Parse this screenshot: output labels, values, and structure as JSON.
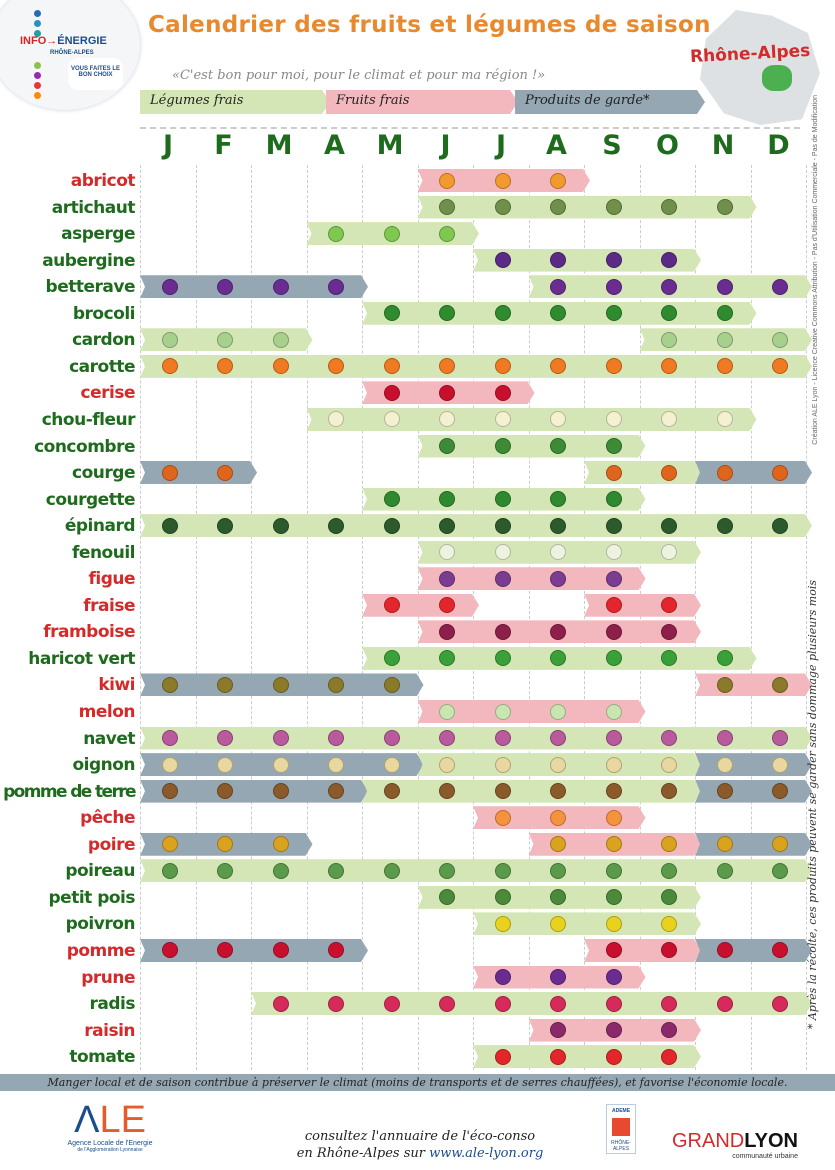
{
  "header": {
    "logo": {
      "line1a": "INFO→",
      "line1b": "ÉNERGIE",
      "line2": "RHÔNE-ALPES",
      "badge": "VOUS FAITES LE BON CHOIX"
    },
    "title": "Calendrier des fruits et légumes de saison",
    "subtitle": "«C'est bon pour moi, pour le climat et pour ma région !»",
    "region": "Rhône-Alpes"
  },
  "legend": [
    {
      "key": "fresh_veg",
      "label": "Légumes frais",
      "color": "#d4e6b5"
    },
    {
      "key": "fresh_fruit",
      "label": "Fruits frais",
      "color": "#f2b8bd"
    },
    {
      "key": "storage",
      "label": "Produits de garde*",
      "color": "#94a7b3"
    }
  ],
  "colors": {
    "veg_label": "#1e6b1e",
    "fruit_label": "#d42a2a",
    "title": "#e8892e"
  },
  "months": [
    "J",
    "F",
    "M",
    "A",
    "M",
    "J",
    "J",
    "A",
    "S",
    "O",
    "N",
    "D"
  ],
  "items": [
    {
      "name": "abricot",
      "kind": "fruit",
      "icon": "apricot-icon",
      "icon_color": "#f29a2e",
      "segments": [
        [
          5,
          7,
          "fresh_fruit"
        ]
      ]
    },
    {
      "name": "artichaut",
      "kind": "veg",
      "icon": "artichoke-icon",
      "icon_color": "#6f8f4a",
      "segments": [
        [
          5,
          10,
          "fresh_veg"
        ]
      ]
    },
    {
      "name": "asperge",
      "kind": "veg",
      "icon": "asparagus-icon",
      "icon_color": "#7ec850",
      "segments": [
        [
          3,
          5,
          "fresh_veg"
        ]
      ]
    },
    {
      "name": "aubergine",
      "kind": "veg",
      "icon": "eggplant-icon",
      "icon_color": "#5b2a86",
      "segments": [
        [
          6,
          9,
          "fresh_veg"
        ]
      ]
    },
    {
      "name": "betterave",
      "kind": "veg",
      "icon": "beetroot-icon",
      "icon_color": "#6a2c91",
      "segments": [
        [
          0,
          3,
          "storage"
        ],
        [
          7,
          11,
          "fresh_veg"
        ]
      ]
    },
    {
      "name": "brocoli",
      "kind": "veg",
      "icon": "broccoli-icon",
      "icon_color": "#2e8b2e",
      "segments": [
        [
          4,
          10,
          "fresh_veg"
        ]
      ]
    },
    {
      "name": "cardon",
      "kind": "veg",
      "icon": "cardoon-icon",
      "icon_color": "#a8d08d",
      "segments": [
        [
          0,
          2,
          "fresh_veg"
        ],
        [
          9,
          11,
          "fresh_veg"
        ]
      ]
    },
    {
      "name": "carotte",
      "kind": "veg",
      "icon": "carrot-icon",
      "icon_color": "#f07a22",
      "segments": [
        [
          0,
          11,
          "fresh_veg"
        ]
      ]
    },
    {
      "name": "cerise",
      "kind": "fruit",
      "icon": "cherry-icon",
      "icon_color": "#c8102e",
      "segments": [
        [
          4,
          6,
          "fresh_fruit"
        ]
      ]
    },
    {
      "name": "chou-fleur",
      "kind": "veg",
      "icon": "cauliflower-icon",
      "icon_color": "#f4f1d0",
      "segments": [
        [
          3,
          10,
          "fresh_veg"
        ]
      ]
    },
    {
      "name": "concombre",
      "kind": "veg",
      "icon": "cucumber-icon",
      "icon_color": "#3d8b37",
      "segments": [
        [
          5,
          8,
          "fresh_veg"
        ]
      ]
    },
    {
      "name": "courge",
      "kind": "veg",
      "icon": "pumpkin-icon",
      "icon_color": "#e0651c",
      "segments": [
        [
          0,
          1,
          "storage"
        ],
        [
          8,
          9,
          "fresh_veg"
        ],
        [
          10,
          11,
          "storage"
        ]
      ]
    },
    {
      "name": "courgette",
      "kind": "veg",
      "icon": "zucchini-icon",
      "icon_color": "#2f8a2f",
      "segments": [
        [
          4,
          8,
          "fresh_veg"
        ]
      ]
    },
    {
      "name": "épinard",
      "kind": "veg",
      "icon": "spinach-icon",
      "icon_color": "#2d5a2d",
      "segments": [
        [
          0,
          11,
          "fresh_veg"
        ]
      ]
    },
    {
      "name": "fenouil",
      "kind": "veg",
      "icon": "fennel-icon",
      "icon_color": "#eef3e0",
      "segments": [
        [
          5,
          9,
          "fresh_veg"
        ]
      ]
    },
    {
      "name": "figue",
      "kind": "fruit",
      "icon": "fig-icon",
      "icon_color": "#7a3d91",
      "segments": [
        [
          5,
          8,
          "fresh_fruit"
        ]
      ]
    },
    {
      "name": "fraise",
      "kind": "fruit",
      "icon": "strawberry-icon",
      "icon_color": "#e3262b",
      "segments": [
        [
          4,
          5,
          "fresh_fruit"
        ],
        [
          8,
          9,
          "fresh_fruit"
        ]
      ]
    },
    {
      "name": "framboise",
      "kind": "fruit",
      "icon": "raspberry-icon",
      "icon_color": "#8e1f4a",
      "segments": [
        [
          5,
          9,
          "fresh_fruit"
        ]
      ]
    },
    {
      "name": "haricot vert",
      "kind": "veg",
      "icon": "green-bean-icon",
      "icon_color": "#3aa13a",
      "segments": [
        [
          4,
          10,
          "fresh_veg"
        ]
      ]
    },
    {
      "name": "kiwi",
      "kind": "fruit",
      "icon": "kiwi-icon",
      "icon_color": "#8a7a2a",
      "segments": [
        [
          0,
          4,
          "storage"
        ],
        [
          10,
          11,
          "fresh_fruit"
        ]
      ]
    },
    {
      "name": "melon",
      "kind": "fruit",
      "icon": "melon-icon",
      "icon_color": "#c9e6b0",
      "segments": [
        [
          5,
          8,
          "fresh_fruit"
        ]
      ]
    },
    {
      "name": "navet",
      "kind": "veg",
      "icon": "turnip-icon",
      "icon_color": "#b85a9c",
      "segments": [
        [
          0,
          11,
          "fresh_veg"
        ]
      ]
    },
    {
      "name": "oignon",
      "kind": "veg",
      "icon": "onion-icon",
      "icon_color": "#e8d8a0",
      "segments": [
        [
          0,
          4,
          "storage"
        ],
        [
          5,
          9,
          "fresh_veg"
        ],
        [
          10,
          11,
          "storage"
        ]
      ]
    },
    {
      "name": "pomme de terre",
      "kind": "veg",
      "icon": "potato-icon",
      "icon_color": "#8b5a2b",
      "segments": [
        [
          0,
          3,
          "storage"
        ],
        [
          4,
          9,
          "fresh_veg"
        ],
        [
          10,
          11,
          "storage"
        ]
      ]
    },
    {
      "name": "pêche",
      "kind": "fruit",
      "icon": "peach-icon",
      "icon_color": "#f5923e",
      "segments": [
        [
          6,
          8,
          "fresh_fruit"
        ]
      ]
    },
    {
      "name": "poire",
      "kind": "fruit",
      "icon": "pear-icon",
      "icon_color": "#d9a21f",
      "segments": [
        [
          0,
          2,
          "storage"
        ],
        [
          7,
          9,
          "fresh_fruit"
        ],
        [
          10,
          11,
          "storage"
        ]
      ]
    },
    {
      "name": "poireau",
      "kind": "veg",
      "icon": "leek-icon",
      "icon_color": "#5a9a4a",
      "segments": [
        [
          0,
          11,
          "fresh_veg"
        ]
      ]
    },
    {
      "name": "petit pois",
      "kind": "veg",
      "icon": "pea-icon",
      "icon_color": "#4a8a3a",
      "segments": [
        [
          5,
          9,
          "fresh_veg"
        ]
      ]
    },
    {
      "name": "poivron",
      "kind": "veg",
      "icon": "pepper-icon",
      "icon_color": "#e8d21e",
      "segments": [
        [
          6,
          9,
          "fresh_veg"
        ]
      ]
    },
    {
      "name": "pomme",
      "kind": "fruit",
      "icon": "apple-icon",
      "icon_color": "#c8102e",
      "segments": [
        [
          0,
          3,
          "storage"
        ],
        [
          8,
          9,
          "fresh_fruit"
        ],
        [
          10,
          11,
          "storage"
        ]
      ]
    },
    {
      "name": "prune",
      "kind": "fruit",
      "icon": "plum-icon",
      "icon_color": "#6a2c91",
      "segments": [
        [
          6,
          8,
          "fresh_fruit"
        ]
      ]
    },
    {
      "name": "radis",
      "kind": "veg",
      "icon": "radish-icon",
      "icon_color": "#d62b5a",
      "segments": [
        [
          2,
          11,
          "fresh_veg"
        ]
      ]
    },
    {
      "name": "raisin",
      "kind": "fruit",
      "icon": "grape-icon",
      "icon_color": "#8a2a6a",
      "segments": [
        [
          7,
          9,
          "fresh_fruit"
        ]
      ]
    },
    {
      "name": "tomate",
      "kind": "veg",
      "icon": "tomato-icon",
      "icon_color": "#e3262b",
      "segments": [
        [
          6,
          9,
          "fresh_veg"
        ]
      ]
    }
  ],
  "side_note": "* Après la récolte, ces produits peuvent se garder sans dommage plusieurs mois",
  "credit": "Création ALE Lyon - Licence Creative Commons Attribution - Pas d'Utilisation Commerciale - Pas de Modification",
  "footer": {
    "band": "Manger local et de saison contribue à préserver le climat (moins de transports et de serres chauffées), et favorise l'économie locale.",
    "ale_logo": "ALE",
    "ale_name": "Agence Locale de l'Energie",
    "ale_sub": "de l'Agglomération Lyonnaise",
    "consult_line1": "consultez l'annuaire de l'éco-conso",
    "consult_line2": "en Rhône-Alpes sur",
    "url": "www.ale-lyon.org",
    "ademe": "ADEME",
    "ademe_sub": "RHÔNE-ALPES",
    "grandlyon_a": "GRAND",
    "grandlyon_b": "LYON",
    "grandlyon_sub": "communauté urbaine"
  }
}
